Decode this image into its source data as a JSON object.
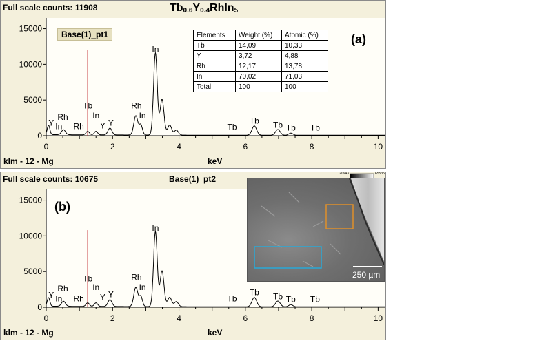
{
  "title_formula": {
    "parts": [
      {
        "t": "Tb",
        "sub": false
      },
      {
        "t": "0.6",
        "sub": true
      },
      {
        "t": "Y",
        "sub": false
      },
      {
        "t": "0.4",
        "sub": true
      },
      {
        "t": "RhIn",
        "sub": false
      },
      {
        "t": "5",
        "sub": true
      }
    ]
  },
  "panel_a": {
    "fsc_label": "Full scale counts: ",
    "fsc_value": "11908",
    "spot_label": "Base(1)_pt1",
    "tag": "(a)",
    "footer": "klm - 12 - Mg",
    "axis_label": "keV"
  },
  "panel_b": {
    "fsc_label": "Full scale counts: ",
    "fsc_value": "10675",
    "spot_label": "Base(1)_pt2",
    "tag": "(b)",
    "footer": "klm - 12 - Mg",
    "axis_label": "keV"
  },
  "composition_table": {
    "headers": [
      "Elements",
      "Weight (%)",
      "Atomic (%)"
    ],
    "rows": [
      [
        "Tb",
        "14,09",
        "10,33"
      ],
      [
        "Y",
        "3,72",
        "4,88"
      ],
      [
        "Rh",
        "12,17",
        "13,78"
      ],
      [
        "In",
        "70,02",
        "71,03"
      ],
      [
        "Total",
        "100",
        "100"
      ]
    ]
  },
  "sem_image": {
    "scale_bar_label": "250 µm",
    "colorbar_min": "20643",
    "colorbar_max": "65535",
    "box_colors": {
      "orange": "#e0902a",
      "blue": "#29a9d8"
    }
  },
  "chart_data": [
    {
      "type": "line",
      "xlabel": "keV",
      "xlim": [
        0,
        10.2
      ],
      "ylim": [
        0,
        16500
      ],
      "x_ticks": [
        0,
        2,
        4,
        6,
        8,
        10
      ],
      "y_ticks": [
        0,
        5000,
        10000,
        15000
      ],
      "marker_keV": 1.25,
      "marker_top": 12000,
      "peaks": [
        {
          "keV": 0.07,
          "height": 1300,
          "width": 0.04
        },
        {
          "keV": 0.52,
          "height": 700,
          "width": 0.06
        },
        {
          "keV": 1.25,
          "height": 500,
          "width": 0.05
        },
        {
          "keV": 1.5,
          "height": 500,
          "width": 0.05
        },
        {
          "keV": 1.92,
          "height": 950,
          "width": 0.06
        },
        {
          "keV": 2.7,
          "height": 2700,
          "width": 0.06
        },
        {
          "keV": 2.85,
          "height": 1400,
          "width": 0.05
        },
        {
          "keV": 3.29,
          "height": 11500,
          "width": 0.055
        },
        {
          "keV": 3.49,
          "height": 5000,
          "width": 0.06
        },
        {
          "keV": 3.72,
          "height": 1400,
          "width": 0.06
        },
        {
          "keV": 3.92,
          "height": 700,
          "width": 0.06
        },
        {
          "keV": 6.27,
          "height": 1300,
          "width": 0.07
        },
        {
          "keV": 6.98,
          "height": 800,
          "width": 0.07
        },
        {
          "keV": 7.37,
          "height": 300,
          "width": 0.06
        }
      ],
      "peak_labels": [
        {
          "text": "Y",
          "keV": 0.15,
          "y": 1400
        },
        {
          "text": "In",
          "keV": 0.38,
          "y": 900
        },
        {
          "text": "Rh",
          "keV": 0.5,
          "y": 2200
        },
        {
          "text": "Rh",
          "keV": 0.98,
          "y": 900
        },
        {
          "text": "Tb",
          "keV": 1.25,
          "y": 3800
        },
        {
          "text": "In",
          "keV": 1.5,
          "y": 2400
        },
        {
          "text": "Y",
          "keV": 1.7,
          "y": 1000
        },
        {
          "text": "Y",
          "keV": 1.95,
          "y": 1400
        },
        {
          "text": "Rh",
          "keV": 2.72,
          "y": 3800
        },
        {
          "text": "In",
          "keV": 2.9,
          "y": 2400
        },
        {
          "text": "In",
          "keV": 3.29,
          "y": 11700
        },
        {
          "text": "Tb",
          "keV": 5.6,
          "y": 800
        },
        {
          "text": "Tb",
          "keV": 6.27,
          "y": 1700
        },
        {
          "text": "Tb",
          "keV": 6.98,
          "y": 1100
        },
        {
          "text": "Tb",
          "keV": 7.37,
          "y": 700
        },
        {
          "text": "Tb",
          "keV": 8.1,
          "y": 700
        }
      ]
    },
    {
      "type": "line",
      "xlabel": "keV",
      "xlim": [
        0,
        10.2
      ],
      "ylim": [
        0,
        16500
      ],
      "x_ticks": [
        0,
        2,
        4,
        6,
        8,
        10
      ],
      "y_ticks": [
        0,
        5000,
        10000,
        15000
      ],
      "marker_keV": 1.25,
      "marker_top": 10800,
      "peaks": [
        {
          "keV": 0.07,
          "height": 1200,
          "width": 0.04
        },
        {
          "keV": 0.52,
          "height": 700,
          "width": 0.06
        },
        {
          "keV": 1.25,
          "height": 500,
          "width": 0.05
        },
        {
          "keV": 1.5,
          "height": 500,
          "width": 0.05
        },
        {
          "keV": 1.92,
          "height": 950,
          "width": 0.06
        },
        {
          "keV": 2.7,
          "height": 2700,
          "width": 0.06
        },
        {
          "keV": 2.85,
          "height": 1400,
          "width": 0.05
        },
        {
          "keV": 3.29,
          "height": 10500,
          "width": 0.055
        },
        {
          "keV": 3.49,
          "height": 5000,
          "width": 0.06
        },
        {
          "keV": 3.72,
          "height": 1300,
          "width": 0.06
        },
        {
          "keV": 3.92,
          "height": 700,
          "width": 0.06
        },
        {
          "keV": 6.27,
          "height": 1300,
          "width": 0.07
        },
        {
          "keV": 6.98,
          "height": 800,
          "width": 0.07
        },
        {
          "keV": 7.37,
          "height": 300,
          "width": 0.06
        }
      ],
      "peak_labels": [
        {
          "text": "Y",
          "keV": 0.15,
          "y": 1300
        },
        {
          "text": "In",
          "keV": 0.38,
          "y": 800
        },
        {
          "text": "Rh",
          "keV": 0.5,
          "y": 2200
        },
        {
          "text": "Rh",
          "keV": 0.98,
          "y": 800
        },
        {
          "text": "Tb",
          "keV": 1.25,
          "y": 3600
        },
        {
          "text": "In",
          "keV": 1.5,
          "y": 2400
        },
        {
          "text": "Y",
          "keV": 1.7,
          "y": 1000
        },
        {
          "text": "Y",
          "keV": 1.95,
          "y": 1400
        },
        {
          "text": "Rh",
          "keV": 2.72,
          "y": 3800
        },
        {
          "text": "In",
          "keV": 2.9,
          "y": 2400
        },
        {
          "text": "In",
          "keV": 3.29,
          "y": 10700
        },
        {
          "text": "Tb",
          "keV": 5.6,
          "y": 800
        },
        {
          "text": "Tb",
          "keV": 6.27,
          "y": 1700
        },
        {
          "text": "Tb",
          "keV": 6.98,
          "y": 1100
        },
        {
          "text": "Tb",
          "keV": 7.37,
          "y": 700
        },
        {
          "text": "Tb",
          "keV": 8.1,
          "y": 700
        }
      ]
    }
  ]
}
